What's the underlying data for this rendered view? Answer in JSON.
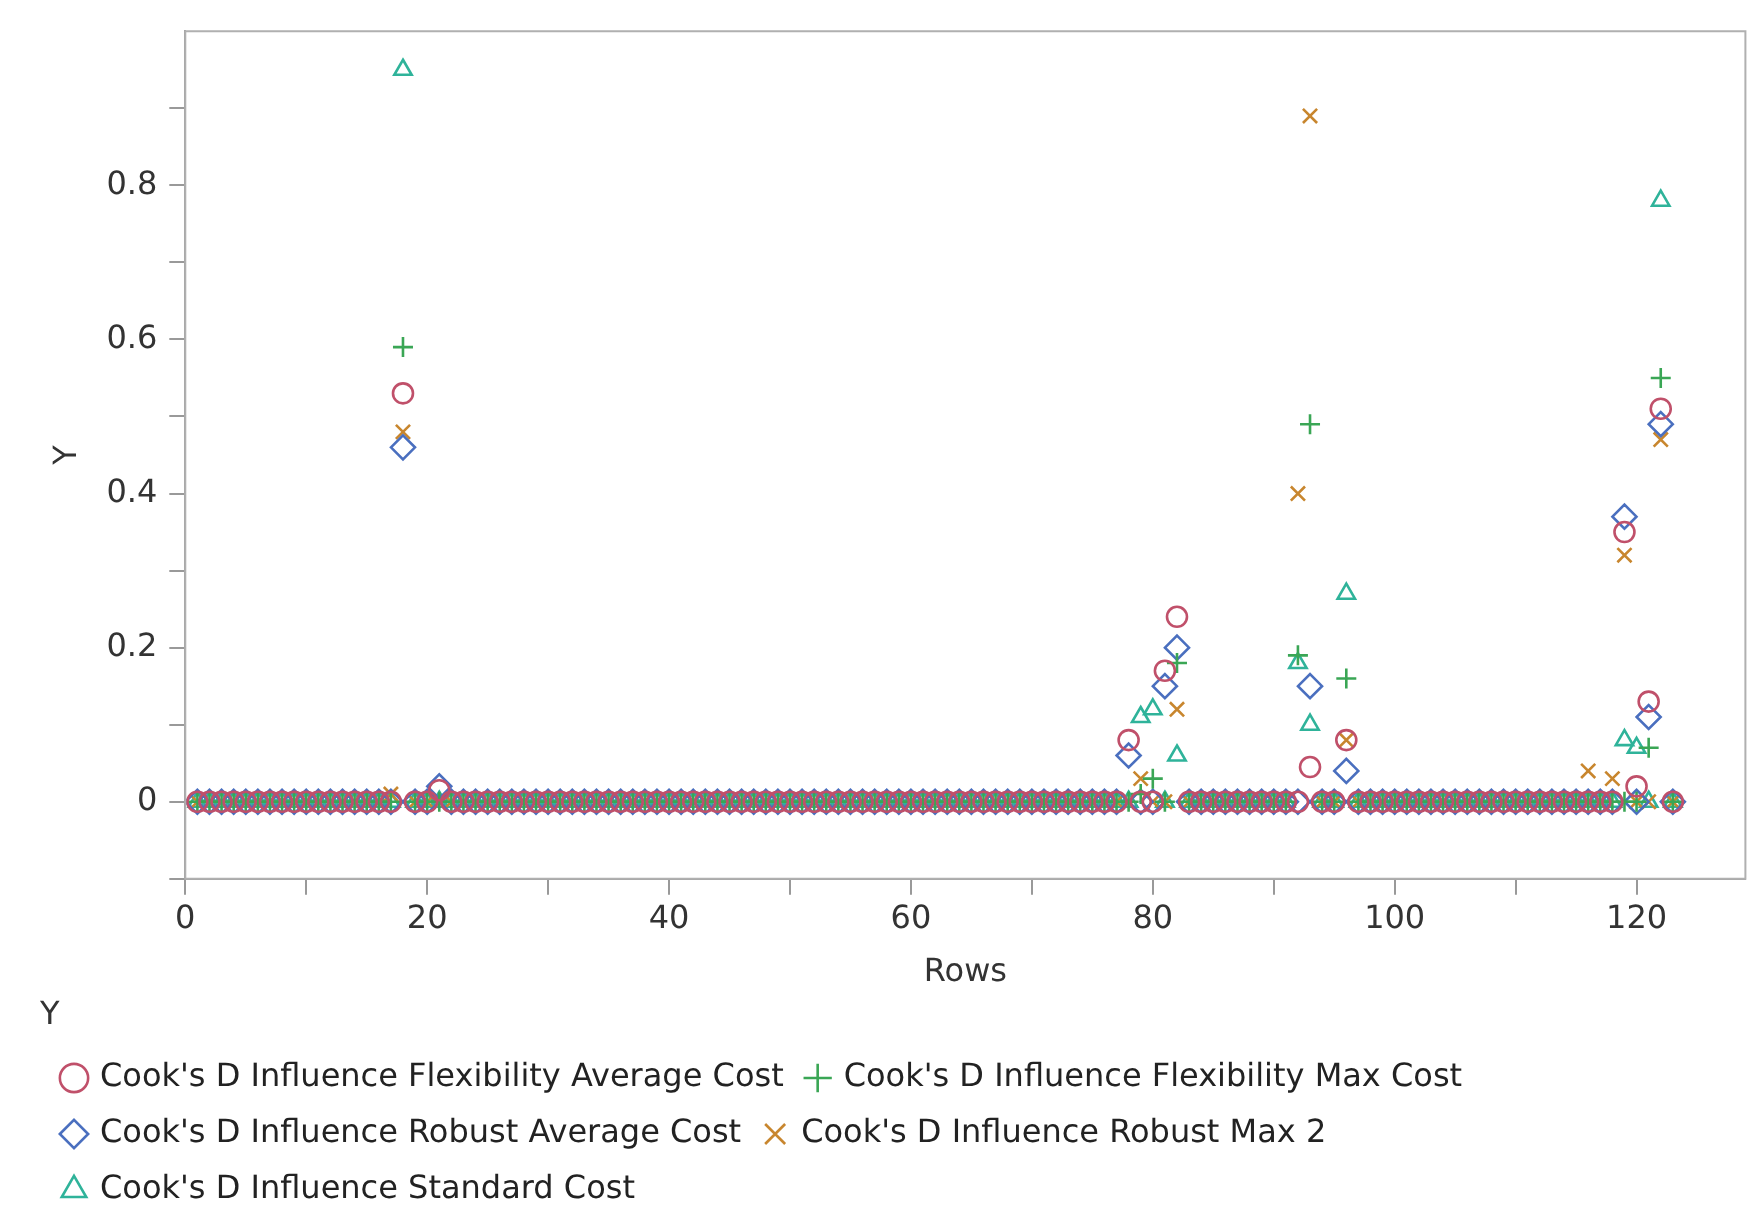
{
  "chart_data": {
    "type": "scatter",
    "xlabel": "Rows",
    "ylabel": "Y",
    "legend_title": "Y",
    "legend": "bottom",
    "grid": false,
    "xlim": [
      0,
      129
    ],
    "ylim": [
      -0.1,
      1.0
    ],
    "xticks": [
      0,
      {
        "value": 10,
        "label": null
      },
      20,
      {
        "value": 30,
        "label": null
      },
      40,
      {
        "value": 50,
        "label": null
      },
      60,
      {
        "value": 70,
        "label": null
      },
      80,
      {
        "value": 90,
        "label": null
      },
      100,
      {
        "value": 110,
        "label": null
      },
      120
    ],
    "yticks": [
      {
        "value": -0.1,
        "label": null
      },
      0,
      {
        "value": 0.1,
        "label": null
      },
      0.2,
      {
        "value": 0.3,
        "label": null
      },
      0.4,
      {
        "value": 0.5,
        "label": null
      },
      0.6,
      {
        "value": 0.7,
        "label": null
      },
      0.8,
      {
        "value": 0.9,
        "label": null
      }
    ],
    "x": [
      1,
      2,
      3,
      4,
      5,
      6,
      7,
      8,
      9,
      10,
      11,
      12,
      13,
      14,
      15,
      16,
      17,
      18,
      19,
      20,
      21,
      22,
      23,
      24,
      25,
      26,
      27,
      28,
      29,
      30,
      31,
      32,
      33,
      34,
      35,
      36,
      37,
      38,
      39,
      40,
      41,
      42,
      43,
      44,
      45,
      46,
      47,
      48,
      49,
      50,
      51,
      52,
      53,
      54,
      55,
      56,
      57,
      58,
      59,
      60,
      61,
      62,
      63,
      64,
      65,
      66,
      67,
      68,
      69,
      70,
      71,
      72,
      73,
      74,
      75,
      76,
      77,
      78,
      79,
      80,
      81,
      82,
      83,
      84,
      85,
      86,
      87,
      88,
      89,
      90,
      91,
      92,
      93,
      94,
      95,
      96,
      97,
      98,
      99,
      100,
      101,
      102,
      103,
      104,
      105,
      106,
      107,
      108,
      109,
      110,
      111,
      112,
      113,
      114,
      115,
      116,
      117,
      118,
      119,
      120,
      121,
      122,
      123
    ],
    "series": [
      {
        "name": "Cook's D Influence Flexibility Average Cost",
        "color": "#c0506a",
        "marker": "circle",
        "values": [
          0,
          0,
          0,
          0,
          0,
          0,
          0,
          0,
          0,
          0,
          0,
          0,
          0,
          0,
          0,
          0,
          0,
          0.53,
          0,
          0,
          0.015,
          0,
          0,
          0,
          0,
          0,
          0,
          0,
          0,
          0,
          0,
          0,
          0,
          0,
          0,
          0,
          0,
          0,
          0,
          0,
          0,
          0,
          0,
          0,
          0,
          0,
          0,
          0,
          0,
          0,
          0,
          0,
          0,
          0,
          0,
          0,
          0,
          0,
          0,
          0,
          0,
          0,
          0,
          0,
          0,
          0,
          0,
          0,
          0,
          0,
          0,
          0,
          0,
          0,
          0,
          0,
          0,
          0.08,
          0,
          0,
          0.17,
          0.24,
          0,
          0,
          0,
          0,
          0,
          0,
          0,
          0,
          0,
          0,
          0.045,
          0,
          0,
          0.08,
          0,
          0,
          0,
          0,
          0,
          0,
          0,
          0,
          0,
          0,
          0,
          0,
          0,
          0,
          0,
          0,
          0,
          0,
          0,
          0,
          0,
          0,
          0.35,
          0.02,
          0.13,
          0.51,
          0
        ]
      },
      {
        "name": "Cook's D Influence Flexibility Max Cost",
        "color": "#3aa655",
        "marker": "cross",
        "values": [
          0,
          0,
          0,
          0,
          0,
          0,
          0,
          0,
          0,
          0,
          0,
          0,
          0,
          0,
          0,
          0,
          0,
          0.59,
          0,
          0,
          0,
          0,
          0,
          0,
          0,
          0,
          0,
          0,
          0,
          0,
          0,
          0,
          0,
          0,
          0,
          0,
          0,
          0,
          0,
          0,
          0,
          0,
          0,
          0,
          0,
          0,
          0,
          0,
          0,
          0,
          0,
          0,
          0,
          0,
          0,
          0,
          0,
          0,
          0,
          0,
          0,
          0,
          0,
          0,
          0,
          0,
          0,
          0,
          0,
          0,
          0,
          0,
          0,
          0,
          0,
          0,
          0,
          0,
          0.01,
          0.03,
          0,
          0.18,
          0,
          0,
          0,
          0,
          0,
          0,
          0,
          0,
          0,
          0.19,
          0.49,
          0,
          0,
          0.16,
          0,
          0,
          0,
          0,
          0,
          0,
          0,
          0,
          0,
          0,
          0,
          0,
          0,
          0,
          0,
          0,
          0,
          0,
          0,
          0,
          0,
          0,
          0,
          0,
          0.07,
          0.55,
          0
        ]
      },
      {
        "name": "Cook's D Influence Robust Average Cost",
        "color": "#4a6fbf",
        "marker": "diamond",
        "values": [
          0,
          0,
          0,
          0,
          0,
          0,
          0,
          0,
          0,
          0,
          0,
          0,
          0,
          0,
          0,
          0,
          0,
          0.46,
          0,
          0,
          0.02,
          0,
          0,
          0,
          0,
          0,
          0,
          0,
          0,
          0,
          0,
          0,
          0,
          0,
          0,
          0,
          0,
          0,
          0,
          0,
          0,
          0,
          0,
          0,
          0,
          0,
          0,
          0,
          0,
          0,
          0,
          0,
          0,
          0,
          0,
          0,
          0,
          0,
          0,
          0,
          0,
          0,
          0,
          0,
          0,
          0,
          0,
          0,
          0,
          0,
          0,
          0,
          0,
          0,
          0,
          0,
          0,
          0.06,
          0,
          0,
          0.15,
          0.2,
          0,
          0,
          0,
          0,
          0,
          0,
          0,
          0,
          0,
          0,
          0.15,
          0,
          0,
          0.04,
          0,
          0,
          0,
          0,
          0,
          0,
          0,
          0,
          0,
          0,
          0,
          0,
          0,
          0,
          0,
          0,
          0,
          0,
          0,
          0,
          0,
          0,
          0.37,
          0,
          0.11,
          0.49,
          0
        ]
      },
      {
        "name": "Cook's D Influence Robust Max 2",
        "color": "#c8862e",
        "marker": "x",
        "values": [
          0,
          0,
          0,
          0,
          0,
          0,
          0,
          0,
          0,
          0,
          0,
          0,
          0,
          0,
          0,
          0,
          0.01,
          0.48,
          0,
          0,
          0,
          0,
          0,
          0,
          0,
          0,
          0,
          0,
          0,
          0,
          0,
          0,
          0,
          0,
          0,
          0,
          0,
          0,
          0,
          0,
          0,
          0,
          0,
          0,
          0,
          0,
          0,
          0,
          0,
          0,
          0,
          0,
          0,
          0,
          0,
          0,
          0,
          0,
          0,
          0,
          0,
          0,
          0,
          0,
          0,
          0,
          0,
          0,
          0,
          0,
          0,
          0,
          0,
          0,
          0,
          0,
          0,
          0,
          0.03,
          0,
          0,
          0.12,
          0,
          0,
          0,
          0,
          0,
          0,
          0,
          0,
          0,
          0.4,
          0.89,
          0,
          0,
          0.08,
          0,
          0,
          0,
          0,
          0,
          0,
          0,
          0,
          0,
          0,
          0,
          0,
          0,
          0,
          0,
          0,
          0,
          0,
          0,
          0.04,
          0,
          0.03,
          0.32,
          0,
          0,
          0.47,
          0
        ]
      },
      {
        "name": "Cook's D Influence Standard Cost",
        "color": "#2fb39a",
        "marker": "triangle",
        "values": [
          0,
          0,
          0,
          0,
          0,
          0,
          0,
          0,
          0,
          0,
          0,
          0,
          0,
          0,
          0,
          0,
          0,
          0.95,
          0,
          0,
          0,
          0,
          0,
          0,
          0,
          0,
          0,
          0,
          0,
          0,
          0,
          0,
          0,
          0,
          0,
          0,
          0,
          0,
          0,
          0,
          0,
          0,
          0,
          0,
          0,
          0,
          0,
          0,
          0,
          0,
          0,
          0,
          0,
          0,
          0,
          0,
          0,
          0,
          0,
          0,
          0,
          0,
          0,
          0,
          0,
          0,
          0,
          0,
          0,
          0,
          0,
          0,
          0,
          0,
          0,
          0,
          0,
          0,
          0.11,
          0.12,
          0,
          0.06,
          0,
          0,
          0,
          0,
          0,
          0,
          0,
          0,
          0,
          0.18,
          0.1,
          0,
          0,
          0.27,
          0,
          0,
          0,
          0,
          0,
          0,
          0,
          0,
          0,
          0,
          0,
          0,
          0,
          0,
          0,
          0,
          0,
          0,
          0,
          0,
          0,
          0,
          0.08,
          0.07,
          0,
          0.78,
          0
        ]
      }
    ]
  }
}
